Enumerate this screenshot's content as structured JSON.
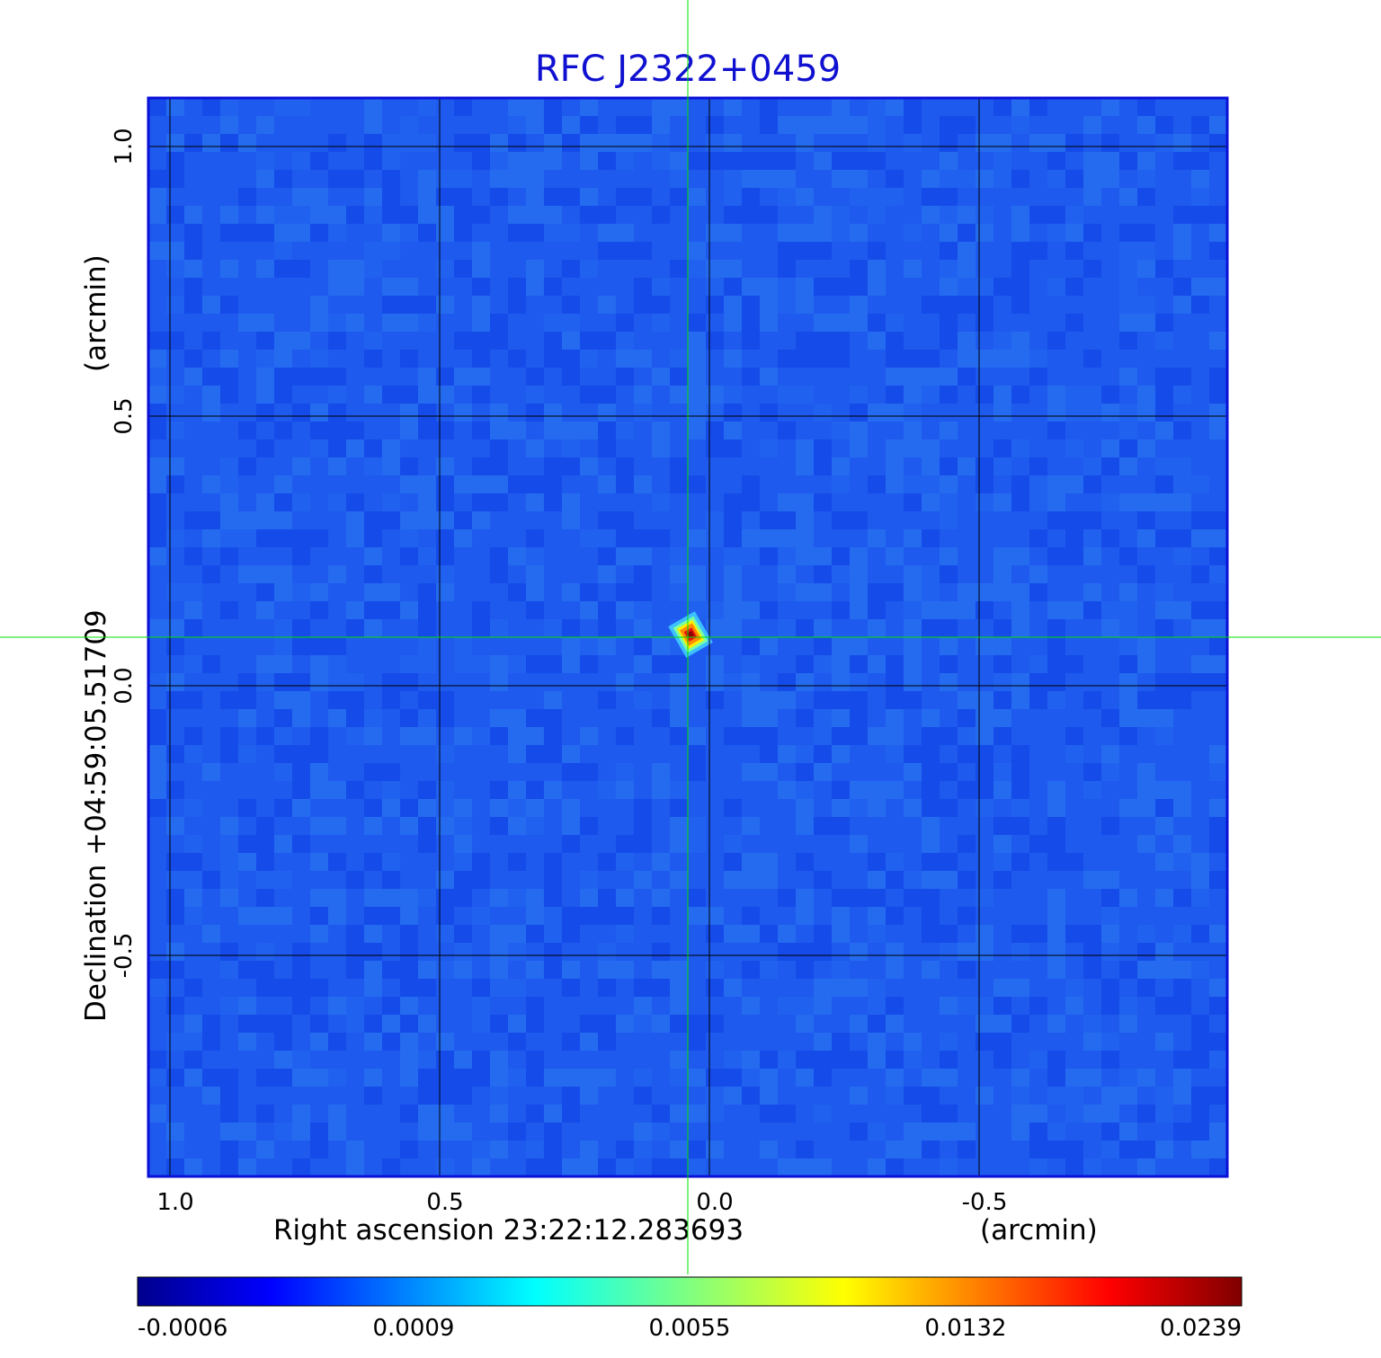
{
  "chart_data": {
    "type": "heatmap",
    "title": "RFC J2322+0459",
    "title_color": "#1010d0",
    "xlabel": "Right ascension  23:22:12.283693",
    "xunit": "(arcmin)",
    "ylabel": "Declination  +04:59:05.51709",
    "yunit": "(arcmin)",
    "x_ticks": [
      "1.0",
      "0.5",
      "0.0",
      "-0.5"
    ],
    "y_ticks": [
      "1.0",
      "0.5",
      "0.0",
      "-0.5"
    ],
    "xlim": [
      1.04,
      -0.96
    ],
    "ylim": [
      -0.91,
      1.09
    ],
    "x_tick_values": [
      1.0,
      0.5,
      0.0,
      -0.5
    ],
    "y_tick_values": [
      1.0,
      0.5,
      0.0,
      -0.5
    ],
    "grid": true,
    "crosshair": {
      "x": 0.04,
      "y": 0.09,
      "color": "#00e000"
    },
    "source_peak": {
      "x": 0.035,
      "y": 0.095,
      "value": 0.0239
    },
    "colorbar": {
      "colormap": "jet",
      "tick_labels": [
        "-0.0006",
        "0.0009",
        "0.0055",
        "0.0132",
        "0.0239"
      ]
    },
    "colors": {
      "background_map": "#1e5aee",
      "grid": "#000000",
      "frame": "#0a10d8"
    }
  }
}
